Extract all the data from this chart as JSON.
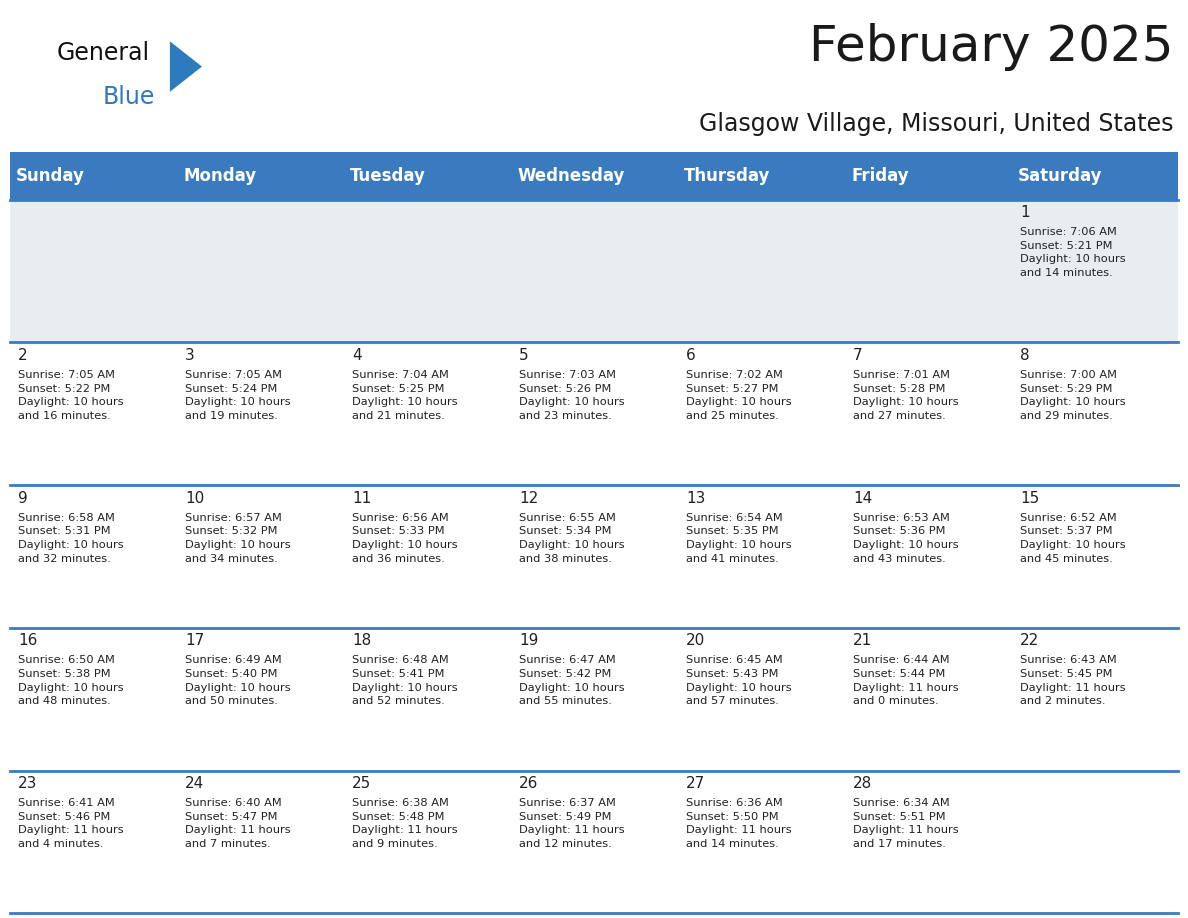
{
  "title": "February 2025",
  "subtitle": "Glasgow Village, Missouri, United States",
  "days_of_week": [
    "Sunday",
    "Monday",
    "Tuesday",
    "Wednesday",
    "Thursday",
    "Friday",
    "Saturday"
  ],
  "header_bg": "#3a7bbf",
  "header_text": "#ffffff",
  "row0_bg": "#e8edf2",
  "cell_bg": "#ffffff",
  "line_color": "#3a7bbf",
  "day_number_color": "#222222",
  "info_text_color": "#222222",
  "title_color": "#1a1a1a",
  "subtitle_color": "#1a1a1a",
  "logo_general_color": "#111111",
  "logo_blue_color": "#2e7abf",
  "calendar_data": [
    [
      {
        "day": null,
        "info": ""
      },
      {
        "day": null,
        "info": ""
      },
      {
        "day": null,
        "info": ""
      },
      {
        "day": null,
        "info": ""
      },
      {
        "day": null,
        "info": ""
      },
      {
        "day": null,
        "info": ""
      },
      {
        "day": 1,
        "info": "Sunrise: 7:06 AM\nSunset: 5:21 PM\nDaylight: 10 hours\nand 14 minutes."
      }
    ],
    [
      {
        "day": 2,
        "info": "Sunrise: 7:05 AM\nSunset: 5:22 PM\nDaylight: 10 hours\nand 16 minutes."
      },
      {
        "day": 3,
        "info": "Sunrise: 7:05 AM\nSunset: 5:24 PM\nDaylight: 10 hours\nand 19 minutes."
      },
      {
        "day": 4,
        "info": "Sunrise: 7:04 AM\nSunset: 5:25 PM\nDaylight: 10 hours\nand 21 minutes."
      },
      {
        "day": 5,
        "info": "Sunrise: 7:03 AM\nSunset: 5:26 PM\nDaylight: 10 hours\nand 23 minutes."
      },
      {
        "day": 6,
        "info": "Sunrise: 7:02 AM\nSunset: 5:27 PM\nDaylight: 10 hours\nand 25 minutes."
      },
      {
        "day": 7,
        "info": "Sunrise: 7:01 AM\nSunset: 5:28 PM\nDaylight: 10 hours\nand 27 minutes."
      },
      {
        "day": 8,
        "info": "Sunrise: 7:00 AM\nSunset: 5:29 PM\nDaylight: 10 hours\nand 29 minutes."
      }
    ],
    [
      {
        "day": 9,
        "info": "Sunrise: 6:58 AM\nSunset: 5:31 PM\nDaylight: 10 hours\nand 32 minutes."
      },
      {
        "day": 10,
        "info": "Sunrise: 6:57 AM\nSunset: 5:32 PM\nDaylight: 10 hours\nand 34 minutes."
      },
      {
        "day": 11,
        "info": "Sunrise: 6:56 AM\nSunset: 5:33 PM\nDaylight: 10 hours\nand 36 minutes."
      },
      {
        "day": 12,
        "info": "Sunrise: 6:55 AM\nSunset: 5:34 PM\nDaylight: 10 hours\nand 38 minutes."
      },
      {
        "day": 13,
        "info": "Sunrise: 6:54 AM\nSunset: 5:35 PM\nDaylight: 10 hours\nand 41 minutes."
      },
      {
        "day": 14,
        "info": "Sunrise: 6:53 AM\nSunset: 5:36 PM\nDaylight: 10 hours\nand 43 minutes."
      },
      {
        "day": 15,
        "info": "Sunrise: 6:52 AM\nSunset: 5:37 PM\nDaylight: 10 hours\nand 45 minutes."
      }
    ],
    [
      {
        "day": 16,
        "info": "Sunrise: 6:50 AM\nSunset: 5:38 PM\nDaylight: 10 hours\nand 48 minutes."
      },
      {
        "day": 17,
        "info": "Sunrise: 6:49 AM\nSunset: 5:40 PM\nDaylight: 10 hours\nand 50 minutes."
      },
      {
        "day": 18,
        "info": "Sunrise: 6:48 AM\nSunset: 5:41 PM\nDaylight: 10 hours\nand 52 minutes."
      },
      {
        "day": 19,
        "info": "Sunrise: 6:47 AM\nSunset: 5:42 PM\nDaylight: 10 hours\nand 55 minutes."
      },
      {
        "day": 20,
        "info": "Sunrise: 6:45 AM\nSunset: 5:43 PM\nDaylight: 10 hours\nand 57 minutes."
      },
      {
        "day": 21,
        "info": "Sunrise: 6:44 AM\nSunset: 5:44 PM\nDaylight: 11 hours\nand 0 minutes."
      },
      {
        "day": 22,
        "info": "Sunrise: 6:43 AM\nSunset: 5:45 PM\nDaylight: 11 hours\nand 2 minutes."
      }
    ],
    [
      {
        "day": 23,
        "info": "Sunrise: 6:41 AM\nSunset: 5:46 PM\nDaylight: 11 hours\nand 4 minutes."
      },
      {
        "day": 24,
        "info": "Sunrise: 6:40 AM\nSunset: 5:47 PM\nDaylight: 11 hours\nand 7 minutes."
      },
      {
        "day": 25,
        "info": "Sunrise: 6:38 AM\nSunset: 5:48 PM\nDaylight: 11 hours\nand 9 minutes."
      },
      {
        "day": 26,
        "info": "Sunrise: 6:37 AM\nSunset: 5:49 PM\nDaylight: 11 hours\nand 12 minutes."
      },
      {
        "day": 27,
        "info": "Sunrise: 6:36 AM\nSunset: 5:50 PM\nDaylight: 11 hours\nand 14 minutes."
      },
      {
        "day": 28,
        "info": "Sunrise: 6:34 AM\nSunset: 5:51 PM\nDaylight: 11 hours\nand 17 minutes."
      },
      {
        "day": null,
        "info": ""
      }
    ]
  ],
  "figsize": [
    11.88,
    9.18
  ],
  "dpi": 100
}
